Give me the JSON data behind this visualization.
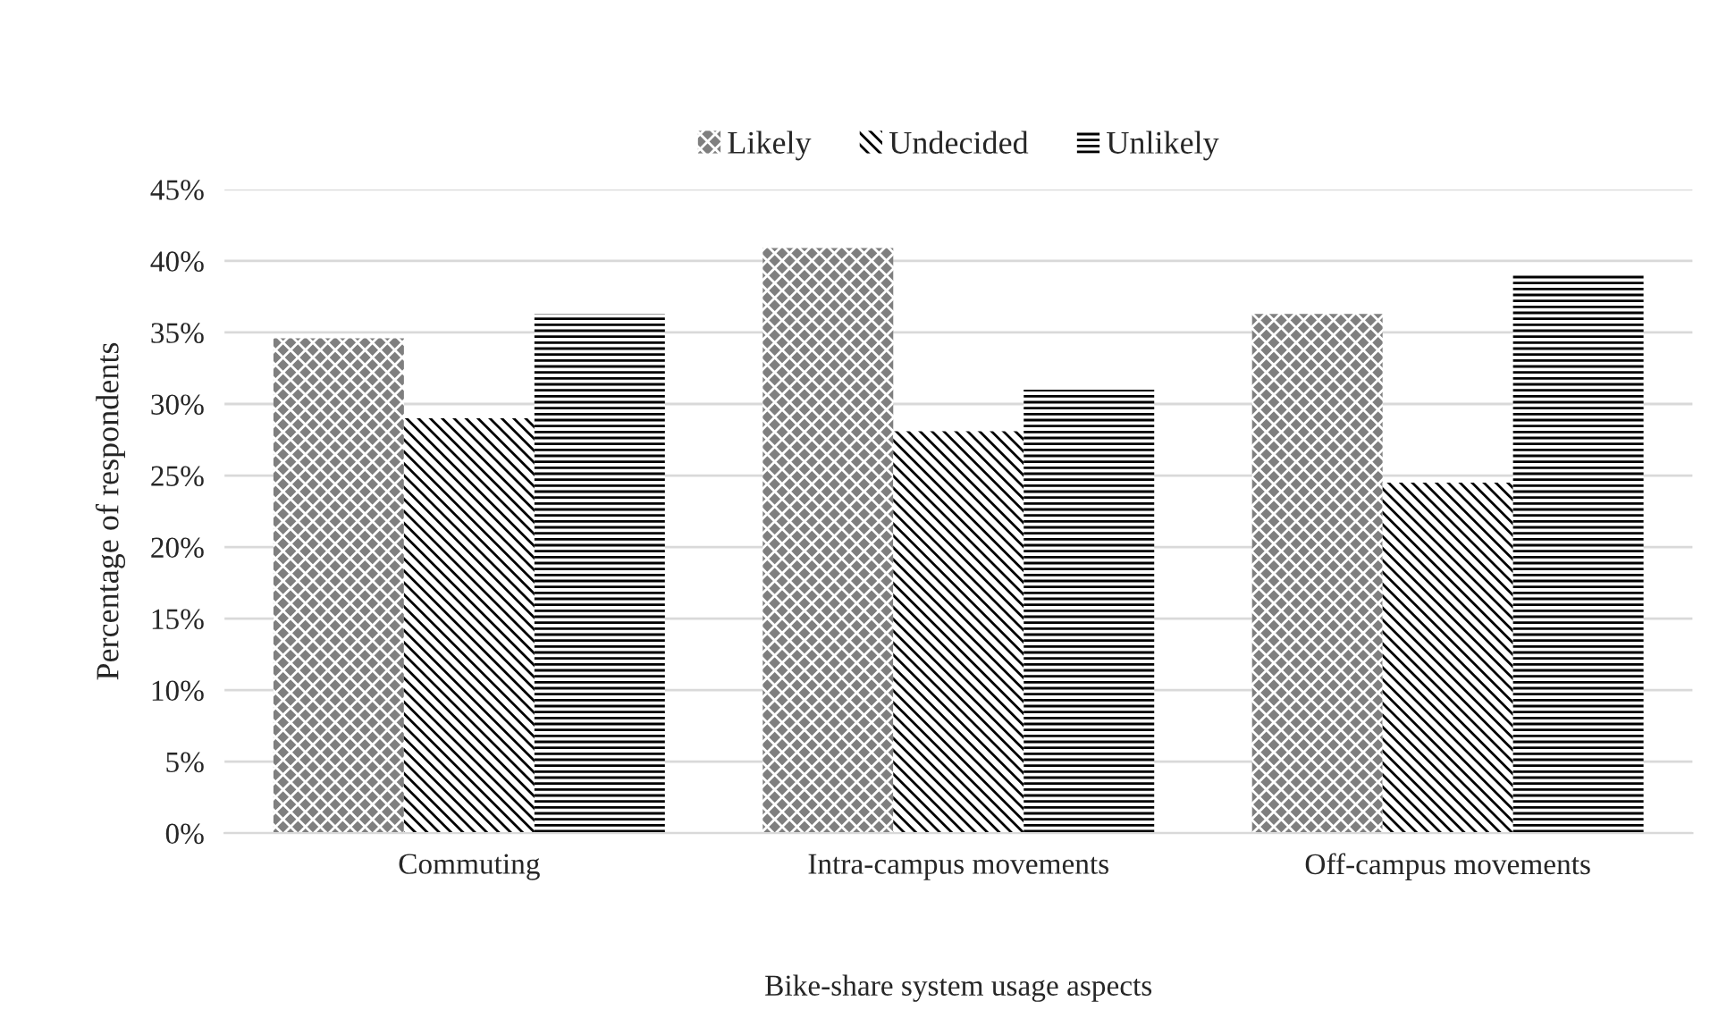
{
  "chart_data": {
    "type": "bar",
    "xlabel": "Bike-share system usage aspects",
    "ylabel": "Percentage of respondents",
    "categories": [
      "Commuting",
      "Intra-campus movements",
      "Off-campus movements"
    ],
    "series": [
      {
        "name": "Likely",
        "color": "#7f7f7f",
        "values": [
          34.6,
          40.9,
          36.3
        ]
      },
      {
        "name": "Undecided",
        "color": "#ffffff",
        "values": [
          29.0,
          28.1,
          24.5
        ]
      },
      {
        "name": "Unlikely",
        "color": "#ffffff",
        "values": [
          36.3,
          31.0,
          39.0
        ]
      }
    ],
    "ylim": [
      0,
      45
    ],
    "yticks": [
      {
        "value": 0,
        "label": "0%"
      },
      {
        "value": 5,
        "label": "5%"
      },
      {
        "value": 10,
        "label": "10%"
      },
      {
        "value": 15,
        "label": "15%"
      },
      {
        "value": 20,
        "label": "20%"
      },
      {
        "value": 25,
        "label": "25%"
      },
      {
        "value": 30,
        "label": "30%"
      },
      {
        "value": 35,
        "label": "35%"
      },
      {
        "value": 40,
        "label": "40%"
      },
      {
        "value": 45,
        "label": "45%"
      }
    ],
    "grid": "y",
    "legend": "top"
  }
}
